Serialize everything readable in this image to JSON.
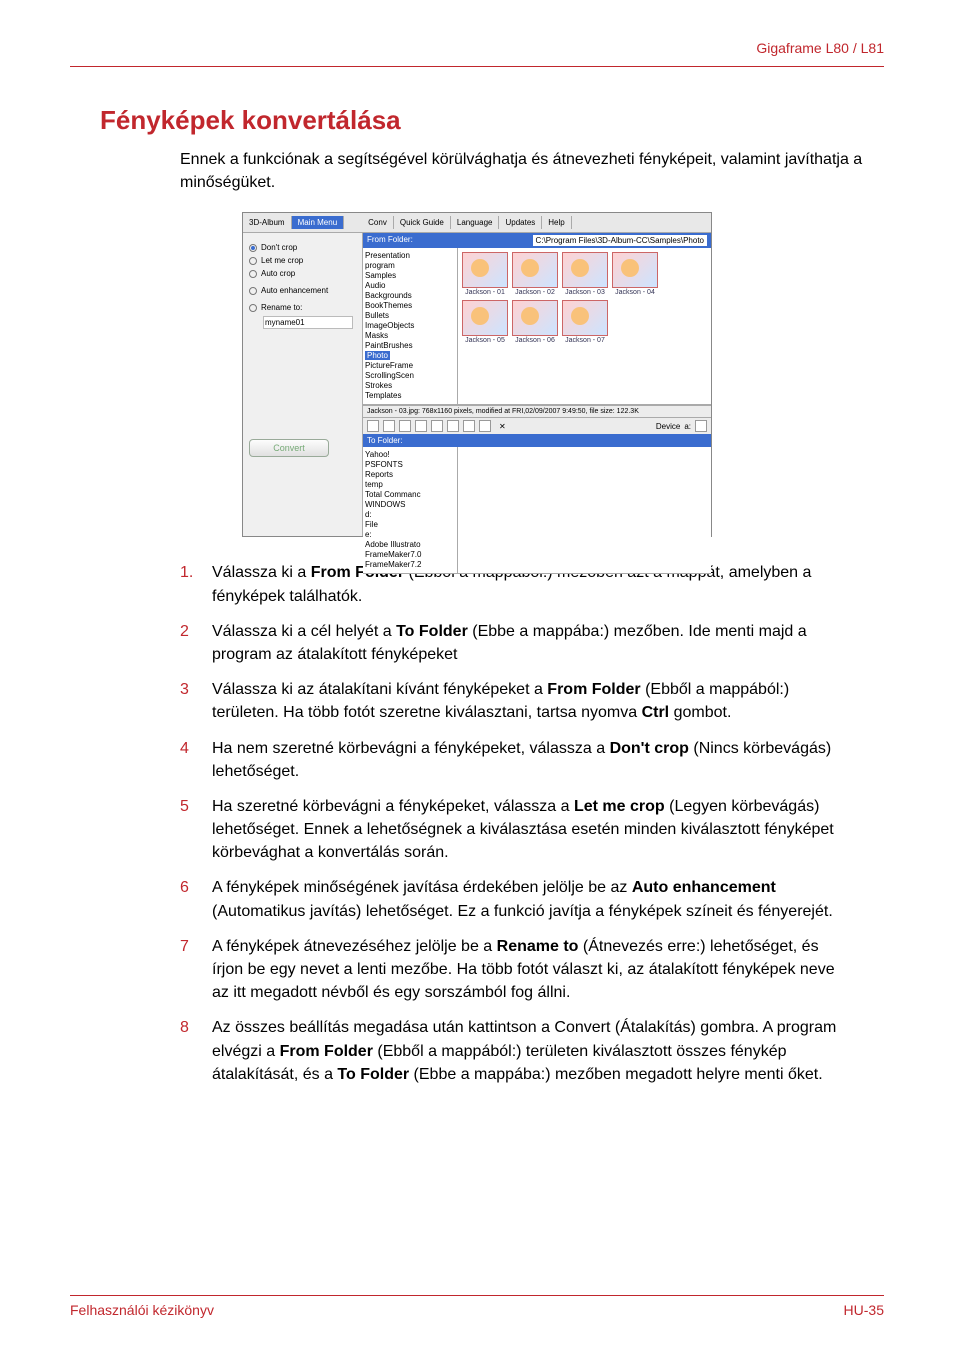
{
  "header": {
    "product": "Gigaframe L80 / L81"
  },
  "title": "Fényképek konvertálása",
  "intro": "Ennek a funkciónak a segítségével körülvághatja és átnevezheti fényképeit, valamint javíthatja a minőségüket.",
  "screenshot": {
    "tabs": {
      "album": "3D-Album",
      "mainmenu": "Main Menu",
      "conv": "Conv",
      "quick": "Quick Guide",
      "language": "Language",
      "updates": "Updates",
      "help": "Help"
    },
    "left": {
      "dont_crop": "Don't crop",
      "let_me_crop": "Let me crop",
      "auto_crop": "Auto crop",
      "auto_enh": "Auto enhancement",
      "rename_to": "Rename to:",
      "rename_value": "myname01",
      "convert": "Convert"
    },
    "from": {
      "label": "From Folder:",
      "path": "C:\\Program Files\\3D-Album-CC\\Samples\\Photo",
      "tree": [
        "Presentation",
        "program",
        "Samples",
        "Audio",
        "Backgrounds",
        "BookThemes",
        "Bullets",
        "ImageObjects",
        "Masks",
        "PaintBrushes",
        "Photo",
        "PictureFrame",
        "ScrollingScen",
        "Strokes",
        "Templates"
      ],
      "sel": "Photo",
      "thumbs": [
        "Jackson - 01",
        "Jackson - 02",
        "Jackson - 03",
        "Jackson - 04",
        "Jackson - 05",
        "Jackson - 06",
        "Jackson - 07"
      ],
      "status": "Jackson - 03.jpg: 768x1160 pixels, modified at FRI,02/09/2007 9:49:50, file size: 122.3K",
      "device": "Device",
      "drive": "a:"
    },
    "to": {
      "label": "To Folder:",
      "tree": [
        "Yahoo!",
        "PSFONTS",
        "Reports",
        "temp",
        "Total Commanc",
        "WINDOWS",
        "d:",
        "File",
        "e:",
        "Adobe Illustrato",
        "FrameMaker7.0",
        "FrameMaker7.2"
      ]
    }
  },
  "steps": [
    "Válassza ki a <b>From Folder</b> (Ebből a mappából:) mezőben azt a mappát, amelyben a fényképek találhatók.",
    "Válassza ki a cél helyét a <b>To Folder</b> (Ebbe a mappába:) mezőben. Ide menti majd a program az átalakított fényképeket",
    "Válassza ki az átalakítani kívánt fényképeket a <b>From Folder</b> (Ebből a mappából:) területen. Ha több fotót szeretne kiválasztani, tartsa nyomva <b>Ctrl</b> gombot.",
    "Ha nem szeretné körbevágni a fényképeket, válassza a <b>Don't crop</b> (Nincs körbevágás) lehetőséget.",
    "Ha szeretné körbevágni a fényképeket, válassza a <b>Let me crop</b> (Legyen körbevágás) lehetőséget. Ennek a lehetőségnek a kiválasztása esetén minden kiválasztott fényképet körbevághat a konvertálás során.",
    "A fényképek minőségének javítása érdekében jelölje be az <b>Auto enhancement</b> (Automatikus javítás) lehetőséget. Ez a funkció javítja a fényképek színeit és fényerejét.",
    "A fényképek átnevezéséhez jelölje be a <b>Rename to</b> (Átnevezés erre:) lehetőséget, és írjon be egy nevet a lenti mezőbe. Ha több fotót választ ki, az átalakított fényképek neve az itt megadott névből és egy sorszámból fog állni.",
    "Az összes beállítás megadása után kattintson a Convert (Átalakítás) gombra. A program elvégzi a <b>From Folder</b> (Ebből a mappából:) területen kiválasztott összes fénykép átalakítását, és a <b>To Folder</b> (Ebbe a mappába:) mezőben megadott helyre menti őket."
  ],
  "footer": {
    "left": "Felhasználói kézikönyv",
    "right": "HU-35"
  }
}
